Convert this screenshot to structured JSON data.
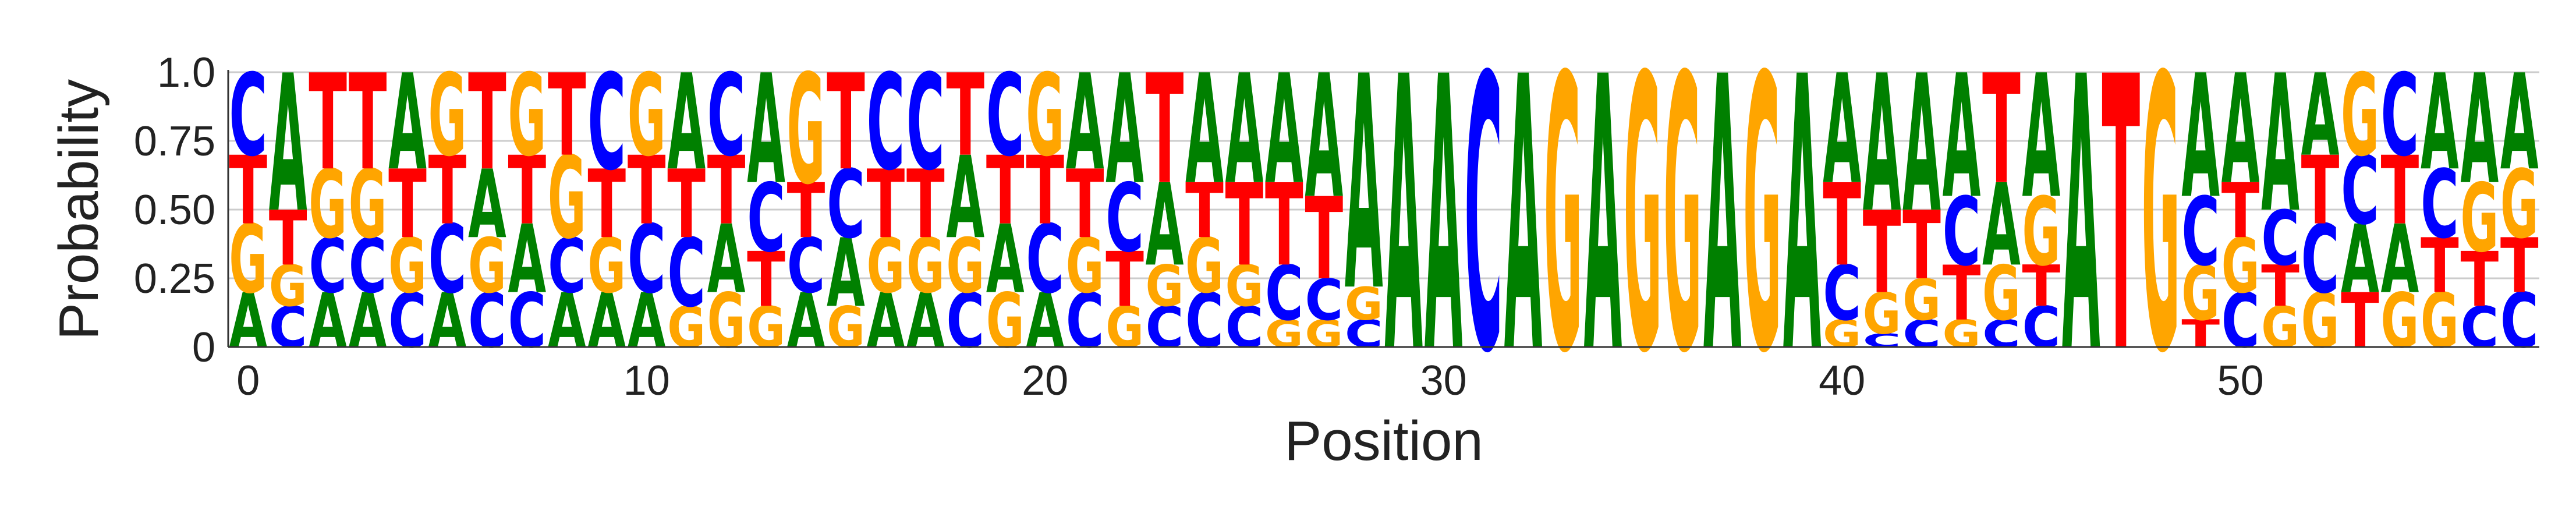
{
  "chart_data": {
    "type": "sequence-logo",
    "xlabel": "Position",
    "ylabel": "Probability",
    "ylim": [
      0,
      1
    ],
    "yticks": [
      {
        "value": 0,
        "label": "0"
      },
      {
        "value": 0.25,
        "label": "0.25"
      },
      {
        "value": 0.5,
        "label": "0.50"
      },
      {
        "value": 0.75,
        "label": "0.75"
      },
      {
        "value": 1.0,
        "label": "1.0"
      }
    ],
    "xticks": [
      0,
      10,
      20,
      30,
      40,
      50
    ],
    "grid": "horizontal",
    "colors": {
      "A": "#008000",
      "C": "#0000ff",
      "G": "#ffa500",
      "T": "#ff0000"
    },
    "positions": [
      {
        "A": 0.2,
        "C": 0.3,
        "G": 0.25,
        "T": 0.25
      },
      {
        "A": 0.5,
        "C": 0.15,
        "G": 0.15,
        "T": 0.2
      },
      {
        "A": 0.2,
        "C": 0.2,
        "G": 0.25,
        "T": 0.35
      },
      {
        "A": 0.2,
        "C": 0.2,
        "G": 0.25,
        "T": 0.35
      },
      {
        "A": 0.35,
        "C": 0.2,
        "G": 0.2,
        "T": 0.25
      },
      {
        "A": 0.2,
        "C": 0.25,
        "G": 0.3,
        "T": 0.25
      },
      {
        "A": 0.25,
        "C": 0.2,
        "G": 0.2,
        "T": 0.35
      },
      {
        "A": 0.25,
        "C": 0.2,
        "G": 0.3,
        "T": 0.25
      },
      {
        "A": 0.2,
        "C": 0.2,
        "G": 0.3,
        "T": 0.3
      },
      {
        "A": 0.2,
        "C": 0.35,
        "G": 0.2,
        "T": 0.25
      },
      {
        "A": 0.2,
        "C": 0.25,
        "G": 0.3,
        "T": 0.25
      },
      {
        "A": 0.35,
        "C": 0.25,
        "G": 0.15,
        "T": 0.25
      },
      {
        "A": 0.25,
        "C": 0.3,
        "G": 0.2,
        "T": 0.25
      },
      {
        "A": 0.4,
        "C": 0.25,
        "G": 0.15,
        "T": 0.2
      },
      {
        "A": 0.2,
        "C": 0.2,
        "G": 0.4,
        "T": 0.2
      },
      {
        "A": 0.25,
        "C": 0.25,
        "G": 0.15,
        "T": 0.35
      },
      {
        "A": 0.2,
        "C": 0.35,
        "G": 0.2,
        "T": 0.25
      },
      {
        "A": 0.2,
        "C": 0.35,
        "G": 0.2,
        "T": 0.25
      },
      {
        "A": 0.3,
        "C": 0.2,
        "G": 0.2,
        "T": 0.3
      },
      {
        "A": 0.25,
        "C": 0.3,
        "G": 0.2,
        "T": 0.25
      },
      {
        "A": 0.2,
        "C": 0.25,
        "G": 0.3,
        "T": 0.25
      },
      {
        "A": 0.35,
        "C": 0.2,
        "G": 0.2,
        "T": 0.25
      },
      {
        "A": 0.4,
        "C": 0.25,
        "G": 0.15,
        "T": 0.2
      },
      {
        "A": 0.3,
        "C": 0.15,
        "G": 0.15,
        "T": 0.4
      },
      {
        "A": 0.4,
        "C": 0.2,
        "G": 0.2,
        "T": 0.2
      },
      {
        "A": 0.4,
        "C": 0.15,
        "G": 0.15,
        "T": 0.3
      },
      {
        "A": 0.4,
        "C": 0.2,
        "G": 0.1,
        "T": 0.3
      },
      {
        "A": 0.45,
        "C": 0.15,
        "G": 0.1,
        "T": 0.3
      },
      {
        "A": 0.78,
        "C": 0.1,
        "G": 0.12,
        "T": 0.0
      },
      {
        "A": 1.0,
        "C": 0.0,
        "G": 0.0,
        "T": 0.0
      },
      {
        "A": 1.0,
        "C": 0.0,
        "G": 0.0,
        "T": 0.0
      },
      {
        "A": 0.0,
        "C": 1.0,
        "G": 0.0,
        "T": 0.0
      },
      {
        "A": 1.0,
        "C": 0.0,
        "G": 0.0,
        "T": 0.0
      },
      {
        "A": 0.0,
        "C": 0.0,
        "G": 1.0,
        "T": 0.0
      },
      {
        "A": 1.0,
        "C": 0.0,
        "G": 0.0,
        "T": 0.0
      },
      {
        "A": 0.0,
        "C": 0.0,
        "G": 1.0,
        "T": 0.0
      },
      {
        "A": 0.0,
        "C": 0.0,
        "G": 1.0,
        "T": 0.0
      },
      {
        "A": 1.0,
        "C": 0.0,
        "G": 0.0,
        "T": 0.0
      },
      {
        "A": 0.0,
        "C": 0.0,
        "G": 1.0,
        "T": 0.0
      },
      {
        "A": 1.0,
        "C": 0.0,
        "G": 0.0,
        "T": 0.0
      },
      {
        "A": 0.4,
        "C": 0.2,
        "G": 0.1,
        "T": 0.3
      },
      {
        "A": 0.5,
        "C": 0.05,
        "G": 0.15,
        "T": 0.3
      },
      {
        "A": 0.5,
        "C": 0.1,
        "G": 0.15,
        "T": 0.25
      },
      {
        "A": 0.45,
        "C": 0.25,
        "G": 0.1,
        "T": 0.2
      },
      {
        "A": 0.3,
        "C": 0.1,
        "G": 0.2,
        "T": 0.4
      },
      {
        "A": 0.45,
        "C": 0.15,
        "G": 0.25,
        "T": 0.15
      },
      {
        "A": 1.0,
        "C": 0.0,
        "G": 0.0,
        "T": 0.0
      },
      {
        "A": 0.0,
        "C": 0.0,
        "G": 0.0,
        "T": 1.0
      },
      {
        "A": 0.0,
        "C": 0.0,
        "G": 1.0,
        "T": 0.0
      },
      {
        "A": 0.45,
        "C": 0.25,
        "G": 0.2,
        "T": 0.1
      },
      {
        "A": 0.4,
        "C": 0.2,
        "G": 0.2,
        "T": 0.2
      },
      {
        "A": 0.5,
        "C": 0.2,
        "G": 0.15,
        "T": 0.15
      },
      {
        "A": 0.3,
        "C": 0.25,
        "G": 0.2,
        "T": 0.25
      },
      {
        "A": 0.25,
        "C": 0.25,
        "G": 0.3,
        "T": 0.2
      },
      {
        "A": 0.25,
        "C": 0.3,
        "G": 0.2,
        "T": 0.25
      },
      {
        "A": 0.35,
        "C": 0.25,
        "G": 0.2,
        "T": 0.2
      },
      {
        "A": 0.4,
        "C": 0.15,
        "G": 0.25,
        "T": 0.2
      },
      {
        "A": 0.35,
        "C": 0.2,
        "G": 0.25,
        "T": 0.2
      }
    ]
  }
}
